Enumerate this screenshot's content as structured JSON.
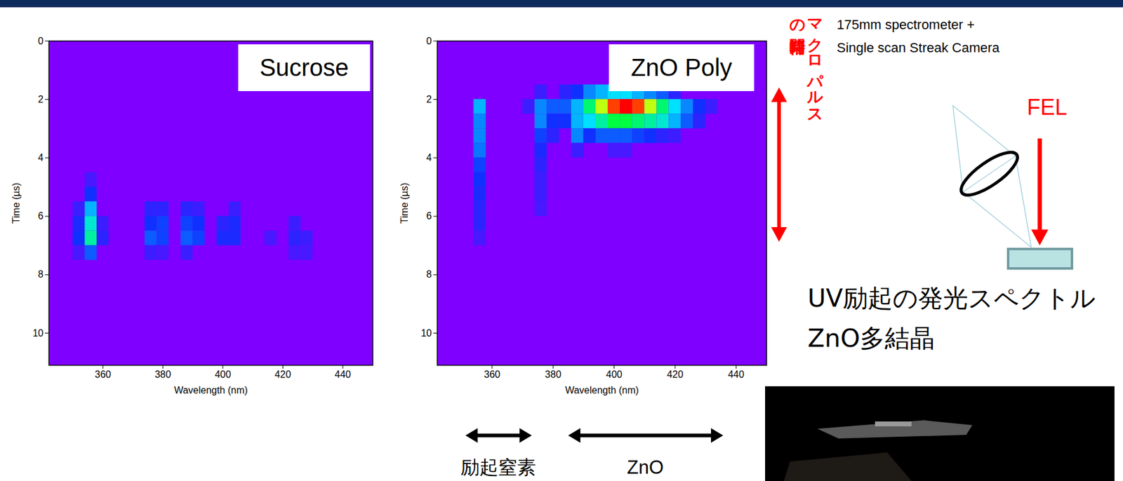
{
  "chart_data": [
    {
      "type": "heatmap",
      "title": "Sucrose",
      "x_label": "Wavelength (nm)",
      "y_label": "Time (µs)",
      "xlim": [
        342,
        450
      ],
      "ylim": [
        0,
        11.1
      ],
      "xticks": [
        360,
        380,
        400,
        420,
        440
      ],
      "yticks": [
        0,
        2,
        4,
        6,
        8,
        10
      ],
      "cell_width": 4,
      "cell_height": 0.5,
      "zlim": [
        0,
        1
      ],
      "cells": [
        [
          356,
          4.75,
          0.1
        ],
        [
          356,
          5.25,
          0.2
        ],
        [
          356,
          5.75,
          0.35
        ],
        [
          356,
          6.25,
          0.45
        ],
        [
          356,
          6.75,
          0.5
        ],
        [
          356,
          7.25,
          0.25
        ],
        [
          352,
          5.75,
          0.12
        ],
        [
          352,
          6.25,
          0.18
        ],
        [
          352,
          6.75,
          0.2
        ],
        [
          352,
          7.25,
          0.1
        ],
        [
          360,
          6.25,
          0.12
        ],
        [
          360,
          6.75,
          0.15
        ],
        [
          376,
          5.75,
          0.15
        ],
        [
          376,
          6.25,
          0.2
        ],
        [
          376,
          6.75,
          0.25
        ],
        [
          376,
          7.25,
          0.12
        ],
        [
          380,
          5.75,
          0.15
        ],
        [
          380,
          6.25,
          0.22
        ],
        [
          380,
          6.75,
          0.22
        ],
        [
          380,
          7.25,
          0.1
        ],
        [
          388,
          5.75,
          0.15
        ],
        [
          388,
          6.25,
          0.22
        ],
        [
          388,
          6.75,
          0.25
        ],
        [
          388,
          7.25,
          0.12
        ],
        [
          392,
          5.75,
          0.12
        ],
        [
          392,
          6.25,
          0.2
        ],
        [
          392,
          6.75,
          0.22
        ],
        [
          400,
          6.25,
          0.15
        ],
        [
          400,
          6.75,
          0.18
        ],
        [
          404,
          5.75,
          0.12
        ],
        [
          404,
          6.25,
          0.18
        ],
        [
          404,
          6.75,
          0.18
        ],
        [
          416,
          6.75,
          0.1
        ],
        [
          424,
          6.25,
          0.12
        ],
        [
          424,
          6.75,
          0.15
        ],
        [
          424,
          7.25,
          0.1
        ],
        [
          428,
          6.75,
          0.12
        ],
        [
          428,
          7.25,
          0.1
        ]
      ]
    },
    {
      "type": "heatmap",
      "title": "ZnO Poly",
      "x_label": "Wavelength (nm)",
      "y_label": "Time (µs)",
      "xlim": [
        342,
        450
      ],
      "ylim": [
        0,
        11.1
      ],
      "xticks": [
        360,
        380,
        400,
        420,
        440
      ],
      "yticks": [
        0,
        2,
        4,
        6,
        8,
        10
      ],
      "cell_width": 4,
      "cell_height": 0.5,
      "zlim": [
        0,
        1
      ],
      "cells": [
        [
          356,
          2.25,
          0.35
        ],
        [
          356,
          2.75,
          0.3
        ],
        [
          356,
          3.25,
          0.3
        ],
        [
          356,
          3.75,
          0.28
        ],
        [
          356,
          4.25,
          0.22
        ],
        [
          356,
          4.75,
          0.2
        ],
        [
          356,
          5.25,
          0.18
        ],
        [
          356,
          5.75,
          0.15
        ],
        [
          356,
          6.25,
          0.15
        ],
        [
          356,
          6.75,
          0.1
        ],
        [
          372,
          2.25,
          0.12
        ],
        [
          376,
          1.75,
          0.12
        ],
        [
          376,
          2.25,
          0.3
        ],
        [
          376,
          2.75,
          0.3
        ],
        [
          376,
          3.25,
          0.22
        ],
        [
          376,
          3.75,
          0.18
        ],
        [
          376,
          4.25,
          0.15
        ],
        [
          376,
          4.75,
          0.12
        ],
        [
          376,
          5.25,
          0.12
        ],
        [
          376,
          5.75,
          0.1
        ],
        [
          380,
          2.25,
          0.25
        ],
        [
          380,
          2.75,
          0.2
        ],
        [
          380,
          3.25,
          0.15
        ],
        [
          384,
          1.75,
          0.15
        ],
        [
          388,
          1.75,
          0.2
        ],
        [
          392,
          1.75,
          0.3
        ],
        [
          396,
          1.75,
          0.35
        ],
        [
          400,
          1.75,
          0.4
        ],
        [
          404,
          1.75,
          0.4
        ],
        [
          408,
          1.75,
          0.35
        ],
        [
          412,
          1.75,
          0.3
        ],
        [
          416,
          1.75,
          0.25
        ],
        [
          420,
          1.75,
          0.15
        ],
        [
          384,
          2.25,
          0.25
        ],
        [
          388,
          2.25,
          0.35
        ],
        [
          392,
          2.25,
          0.55
        ],
        [
          396,
          2.25,
          0.75
        ],
        [
          400,
          2.25,
          0.95
        ],
        [
          404,
          2.25,
          1.0
        ],
        [
          408,
          2.25,
          0.95
        ],
        [
          412,
          2.25,
          0.75
        ],
        [
          416,
          2.25,
          0.55
        ],
        [
          420,
          2.25,
          0.4
        ],
        [
          424,
          2.25,
          0.3
        ],
        [
          428,
          2.25,
          0.2
        ],
        [
          432,
          2.25,
          0.12
        ],
        [
          384,
          2.75,
          0.2
        ],
        [
          388,
          2.75,
          0.35
        ],
        [
          392,
          2.75,
          0.4
        ],
        [
          396,
          2.75,
          0.5
        ],
        [
          400,
          2.75,
          0.6
        ],
        [
          404,
          2.75,
          0.6
        ],
        [
          408,
          2.75,
          0.55
        ],
        [
          412,
          2.75,
          0.5
        ],
        [
          416,
          2.75,
          0.45
        ],
        [
          420,
          2.75,
          0.35
        ],
        [
          424,
          2.75,
          0.25
        ],
        [
          428,
          2.75,
          0.15
        ],
        [
          388,
          3.25,
          0.3
        ],
        [
          392,
          3.25,
          0.2
        ],
        [
          396,
          3.25,
          0.25
        ],
        [
          400,
          3.25,
          0.25
        ],
        [
          404,
          3.25,
          0.25
        ],
        [
          408,
          3.25,
          0.22
        ],
        [
          412,
          3.25,
          0.2
        ],
        [
          416,
          3.25,
          0.15
        ],
        [
          420,
          3.25,
          0.12
        ],
        [
          388,
          3.75,
          0.12
        ],
        [
          400,
          3.75,
          0.1
        ],
        [
          404,
          3.75,
          0.1
        ]
      ]
    }
  ],
  "annotations": {
    "pulse_width_label": "マクロパルスの時間幅",
    "setup_lines": [
      "175mm spectrometer +",
      "Single scan Streak Camera"
    ],
    "beam_label": "FEL",
    "caption_lines": [
      "UV励起の発光スペクトル",
      "ZnO多結晶"
    ],
    "range_labels": [
      "励起窒素",
      "ZnO"
    ]
  }
}
